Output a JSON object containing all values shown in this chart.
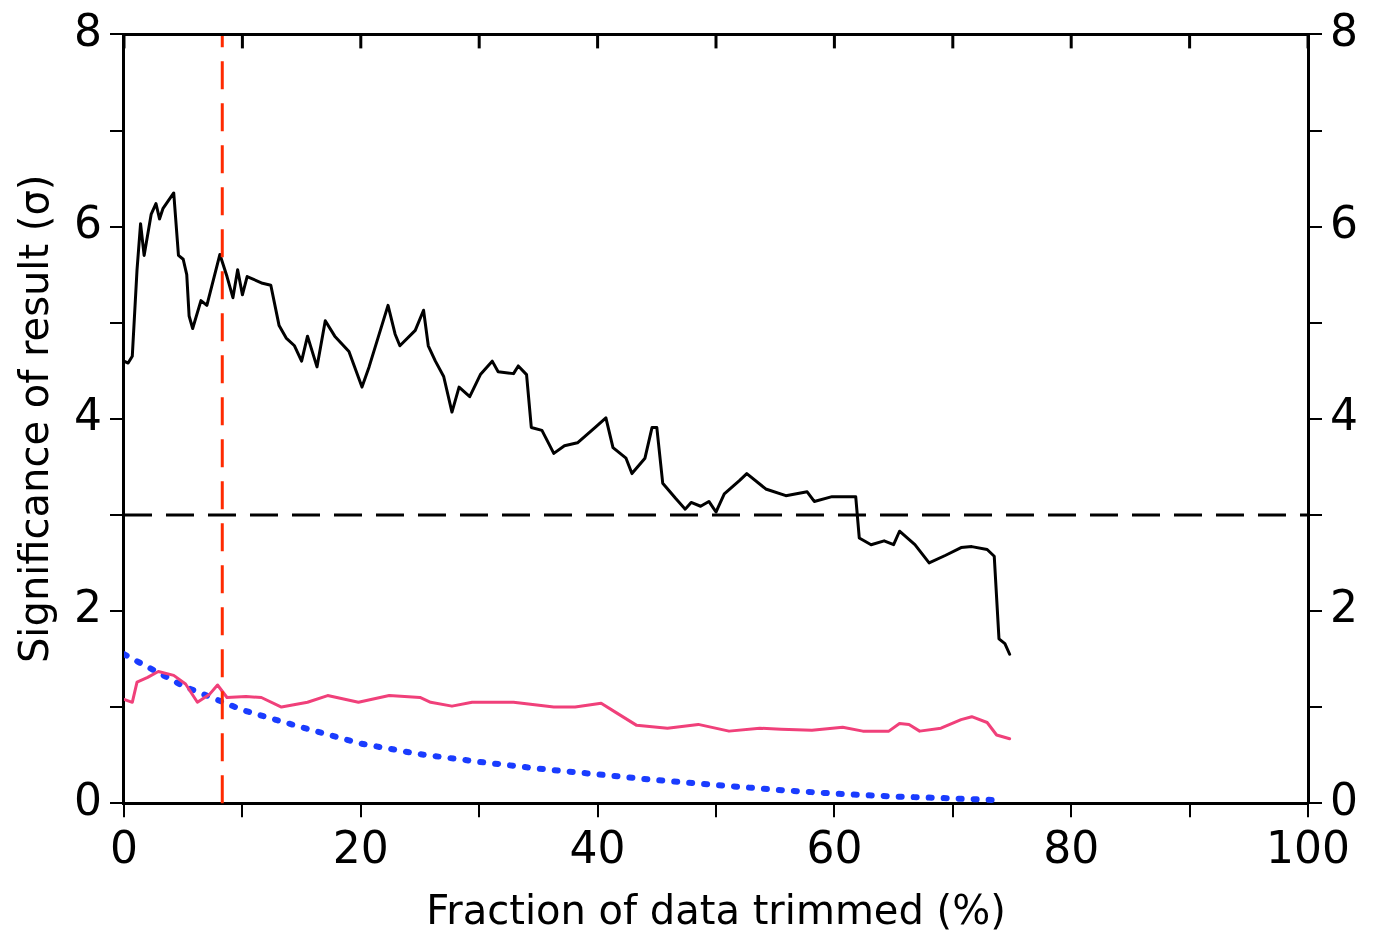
{
  "chart_data": {
    "type": "line",
    "xlabel": "Fraction of data trimmed (%)",
    "ylabel": "Significance of result (σ)",
    "xlim": [
      0,
      100
    ],
    "xticks": [
      0,
      {
        "value": 10,
        "label": null
      },
      20,
      {
        "value": 30,
        "label": null
      },
      40,
      {
        "value": 50,
        "label": null
      },
      60,
      {
        "value": 70,
        "label": null
      },
      80,
      {
        "value": 90,
        "label": null
      },
      100
    ],
    "ylim": [
      0,
      8
    ],
    "yticks": [
      0,
      {
        "value": 1,
        "label": null
      },
      2,
      {
        "value": 3,
        "label": null
      },
      4,
      {
        "value": 5,
        "label": null
      },
      6,
      {
        "value": 7,
        "label": null
      },
      8
    ],
    "y2lim": [
      0,
      8
    ],
    "y2ticks": [
      0,
      {
        "value": 1,
        "label": null
      },
      2,
      {
        "value": 3,
        "label": null
      },
      4,
      {
        "value": 5,
        "label": null
      },
      6,
      {
        "value": 7,
        "label": null
      },
      8
    ],
    "grid": false,
    "legend": false,
    "marker": "none",
    "series": [
      {
        "color": "#000000",
        "line_style": "solid",
        "x": [
          0,
          0.35,
          0.7,
          1.1,
          1.4,
          1.7,
          2.3,
          2.7,
          3.0,
          3.3,
          4.2,
          4.6,
          5.0,
          5.3,
          5.5,
          5.8,
          6.5,
          7.0,
          8.1,
          8.7,
          9.2,
          9.6,
          10.0,
          10.4,
          11.7,
          12.4,
          13.1,
          13.7,
          14.4,
          15.0,
          15.5,
          16.3,
          17.0,
          17.8,
          19.0,
          20.1,
          20.7,
          22.3,
          22.9,
          23.3,
          24.6,
          25.3,
          25.7,
          26.3,
          27.0,
          27.7,
          28.3,
          29.2,
          30.1,
          31.1,
          31.6,
          32.9,
          33.3,
          34.0,
          34.4,
          35.3,
          36.3,
          37.2,
          38.3,
          39.8,
          40.7,
          41.3,
          42.4,
          42.9,
          44.0,
          44.6,
          45.0,
          45.5,
          46.6,
          47.4,
          47.9,
          48.7,
          49.4,
          50.0,
          50.7,
          52.0,
          52.6,
          54.2,
          55.9,
          57.7,
          58.3,
          59.8,
          61.8,
          62.1,
          63.1,
          64.2,
          65.0,
          65.5,
          66.8,
          68.0,
          69.4,
          70.7,
          71.6,
          72.9,
          73.5,
          73.9,
          74.4,
          74.8
        ],
        "values": [
          4.6,
          4.58,
          4.65,
          5.55,
          6.03,
          5.7,
          6.13,
          6.24,
          6.08,
          6.19,
          6.35,
          5.7,
          5.66,
          5.5,
          5.07,
          4.94,
          5.23,
          5.18,
          5.71,
          5.48,
          5.26,
          5.55,
          5.29,
          5.48,
          5.41,
          5.39,
          4.97,
          4.84,
          4.76,
          4.6,
          4.86,
          4.54,
          5.02,
          4.86,
          4.7,
          4.33,
          4.54,
          5.18,
          4.88,
          4.76,
          4.92,
          5.13,
          4.76,
          4.6,
          4.44,
          4.07,
          4.33,
          4.23,
          4.46,
          4.6,
          4.49,
          4.47,
          4.55,
          4.46,
          3.91,
          3.88,
          3.64,
          3.72,
          3.75,
          3.91,
          4.01,
          3.7,
          3.59,
          3.43,
          3.59,
          3.91,
          3.91,
          3.33,
          3.17,
          3.06,
          3.13,
          3.09,
          3.14,
          3.03,
          3.22,
          3.36,
          3.43,
          3.27,
          3.2,
          3.24,
          3.14,
          3.19,
          3.19,
          2.76,
          2.69,
          2.73,
          2.69,
          2.83,
          2.69,
          2.5,
          2.58,
          2.66,
          2.67,
          2.64,
          2.57,
          1.71,
          1.66,
          1.55
        ]
      },
      {
        "color": "#f0407a",
        "line_style": "solid",
        "x": [
          0,
          0.7,
          1.1,
          2.0,
          2.9,
          4.2,
          5.2,
          6.2,
          7.2,
          7.9,
          8.7,
          10.3,
          11.6,
          13.3,
          15.5,
          17.2,
          19.8,
          22.4,
          25.0,
          25.9,
          27.7,
          29.4,
          32.9,
          36.3,
          38.1,
          40.3,
          41.6,
          43.3,
          45.9,
          48.5,
          51.1,
          53.7,
          55.5,
          58.1,
          60.7,
          62.4,
          64.6,
          65.5,
          66.3,
          67.2,
          69.0,
          70.7,
          71.6,
          72.9,
          73.7,
          74.8
        ],
        "values": [
          1.08,
          1.05,
          1.26,
          1.31,
          1.37,
          1.33,
          1.24,
          1.05,
          1.13,
          1.23,
          1.1,
          1.11,
          1.1,
          1.0,
          1.05,
          1.12,
          1.05,
          1.12,
          1.1,
          1.05,
          1.01,
          1.05,
          1.05,
          1.0,
          1.0,
          1.04,
          0.94,
          0.81,
          0.78,
          0.82,
          0.75,
          0.78,
          0.77,
          0.76,
          0.79,
          0.75,
          0.75,
          0.83,
          0.82,
          0.75,
          0.78,
          0.87,
          0.9,
          0.84,
          0.71,
          0.67
        ]
      },
      {
        "color": "#1a3cff",
        "line_style": "dotted",
        "x": [
          0,
          5,
          10,
          15,
          20,
          25,
          30,
          35,
          40,
          45,
          50,
          55,
          60,
          65,
          70,
          74
        ],
        "values": [
          1.55,
          1.22,
          0.97,
          0.79,
          0.62,
          0.51,
          0.43,
          0.36,
          0.3,
          0.24,
          0.19,
          0.14,
          0.1,
          0.07,
          0.05,
          0.03
        ]
      }
    ],
    "ref_lines": [
      {
        "axis": "y",
        "value": 3,
        "color": "#000000",
        "line_style": "dashed"
      },
      {
        "axis": "x",
        "value": 8.3,
        "color": "#ff2a00",
        "line_style": "dashed"
      }
    ]
  }
}
